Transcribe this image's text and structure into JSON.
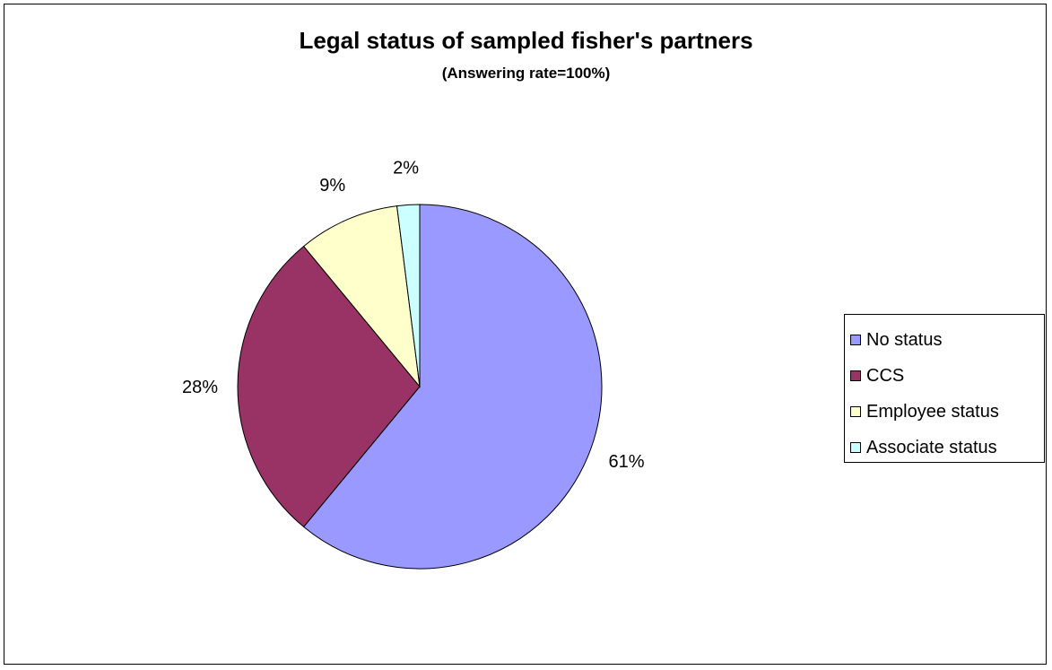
{
  "chart_data": {
    "type": "pie",
    "title": "Legal status of sampled fisher's partners",
    "subtitle": "(Answering rate=100%)",
    "legend_position": "right",
    "slices": [
      {
        "label": "No status",
        "value": 61,
        "value_label": "61%",
        "color": "#9999ff"
      },
      {
        "label": "CCS",
        "value": 28,
        "value_label": "28%",
        "color": "#993366"
      },
      {
        "label": "Employee status",
        "value": 9,
        "value_label": "9%",
        "color": "#ffffcc"
      },
      {
        "label": "Associate status",
        "value": 2,
        "value_label": "2%",
        "color": "#ccffff"
      }
    ]
  }
}
